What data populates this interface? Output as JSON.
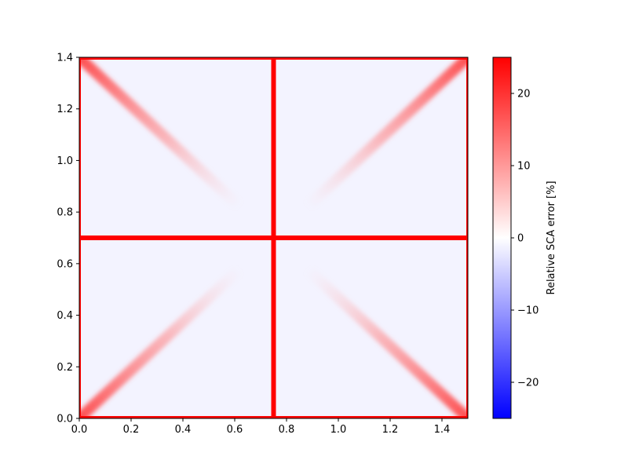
{
  "chart_data": {
    "type": "heatmap",
    "title": "",
    "xlabel": "",
    "ylabel": "",
    "xlim": [
      0.0,
      1.5
    ],
    "ylim": [
      0.0,
      1.4
    ],
    "xticks": [
      {
        "value": 0.0,
        "label": "0.0"
      },
      {
        "value": 0.2,
        "label": "0.2"
      },
      {
        "value": 0.4,
        "label": "0.4"
      },
      {
        "value": 0.6,
        "label": "0.6"
      },
      {
        "value": 0.8,
        "label": "0.8"
      },
      {
        "value": 1.0,
        "label": "1.0"
      },
      {
        "value": 1.2,
        "label": "1.2"
      },
      {
        "value": 1.4,
        "label": "1.4"
      }
    ],
    "yticks": [
      {
        "value": 0.0,
        "label": "0.0"
      },
      {
        "value": 0.2,
        "label": "0.2"
      },
      {
        "value": 0.4,
        "label": "0.4"
      },
      {
        "value": 0.6,
        "label": "0.6"
      },
      {
        "value": 0.8,
        "label": "0.8"
      },
      {
        "value": 1.0,
        "label": "1.0"
      },
      {
        "value": 1.2,
        "label": "1.2"
      },
      {
        "value": 1.4,
        "label": "1.4"
      }
    ],
    "colorbar": {
      "label": "Relative SCA error [%]",
      "range": [
        -25,
        25
      ],
      "colormap": "bwr",
      "colors": {
        "low": "#0000ff",
        "mid": "#ffffff",
        "high": "#ff0000"
      },
      "ticks": [
        {
          "value": 20,
          "label": "20"
        },
        {
          "value": 10,
          "label": "10"
        },
        {
          "value": 0,
          "label": "0"
        },
        {
          "value": -10,
          "label": "−10"
        },
        {
          "value": -20,
          "label": "−20"
        }
      ]
    },
    "features": {
      "vertical_line": {
        "x": 0.75,
        "error": 25
      },
      "horizontal_line": {
        "y": 0.7,
        "error": 25
      },
      "border_error": 25,
      "diagonal_bands": [
        {
          "from": [
            0.0,
            1.4
          ],
          "to": [
            0.62,
            0.82
          ],
          "peak_error": 20
        },
        {
          "from": [
            1.5,
            1.4
          ],
          "to": [
            0.88,
            0.82
          ],
          "peak_error": 20
        },
        {
          "from": [
            0.0,
            0.0
          ],
          "to": [
            0.62,
            0.58
          ],
          "peak_error": 20
        },
        {
          "from": [
            1.5,
            0.0
          ],
          "to": [
            0.88,
            0.58
          ],
          "peak_error": 20
        }
      ],
      "background_error": -2
    }
  }
}
